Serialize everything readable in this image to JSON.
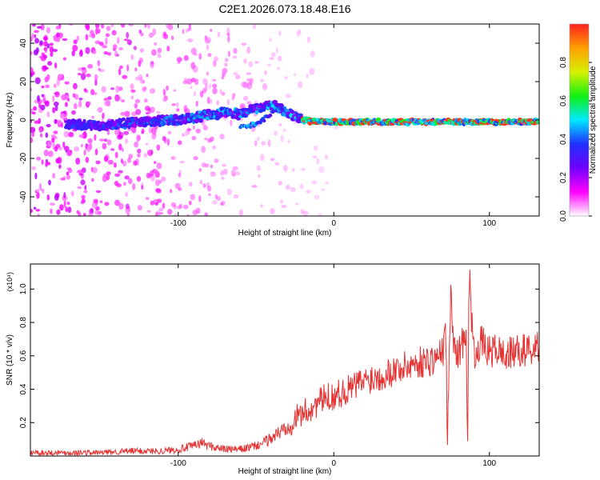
{
  "title": "C2E1.2026.073.18.48.E16",
  "colors": {
    "line": "#e63232",
    "axis": "#000000",
    "colorbar_stops": [
      "#ffffff",
      "#ff00ff",
      "#7000ff",
      "#2030ff",
      "#00e8ff",
      "#10f010",
      "#d8f000",
      "#ffa000",
      "#ff2020"
    ]
  },
  "chart_data": [
    {
      "type": "heatmap",
      "title": "",
      "xlabel": "Height of straight line (km)",
      "ylabel": "Frequency (Hz)",
      "xlim": [
        -195,
        132
      ],
      "ylim": [
        -50,
        50
      ],
      "x_ticks": [
        -100,
        0,
        100
      ],
      "y_ticks": [
        -40,
        -20,
        0,
        20,
        40
      ],
      "ridge": {
        "x": [
          -175,
          -150,
          -125,
          -100,
          -85,
          -70,
          -60,
          -50,
          -40,
          -35,
          -30,
          -20,
          -10,
          0,
          25,
          50,
          75,
          100,
          132
        ],
        "y": [
          -2,
          -3,
          -1,
          0,
          2,
          4,
          3,
          6,
          8,
          6,
          4,
          0,
          -1,
          -1,
          -1,
          -1,
          -1,
          -1,
          -1
        ]
      },
      "branch": {
        "x": [
          -60,
          -50,
          -42,
          -37,
          -30
        ],
        "y": [
          -4,
          -2,
          2,
          6,
          4
        ]
      },
      "colorbar": {
        "label": "Normalized spectral amplitude",
        "range": [
          0,
          1
        ],
        "ticks": [
          0.0,
          0.2,
          0.4,
          0.6,
          0.8
        ]
      }
    },
    {
      "type": "line",
      "title": "",
      "xlabel": "Height of straight line (km)",
      "ylabel": "SNR (10 * v/v)",
      "y_multiplier": "(x10⁴)",
      "xlim": [
        -195,
        132
      ],
      "ylim": [
        0,
        1.15
      ],
      "x_ticks": [
        -100,
        0,
        100
      ],
      "y_ticks": [
        0.2,
        0.4,
        0.6,
        0.8,
        1.0
      ],
      "series": [
        {
          "x": [
            -195,
            -170,
            -150,
            -130,
            -110,
            -100,
            -95,
            -90,
            -85,
            -80,
            -75,
            -70,
            -65,
            -60,
            -55,
            -50,
            -45,
            -40,
            -35,
            -30,
            -25,
            -20,
            -15,
            -10,
            -5,
            0,
            5,
            10,
            15,
            20,
            25,
            30,
            35,
            40,
            45,
            50,
            55,
            60,
            65,
            70,
            72,
            73,
            75,
            78,
            80,
            82,
            85,
            86,
            87,
            90,
            92,
            95,
            100,
            105,
            110,
            115,
            120,
            125,
            132
          ],
          "y": [
            0.02,
            0.02,
            0.02,
            0.03,
            0.03,
            0.04,
            0.05,
            0.06,
            0.08,
            0.06,
            0.05,
            0.04,
            0.04,
            0.04,
            0.05,
            0.06,
            0.08,
            0.11,
            0.14,
            0.18,
            0.22,
            0.26,
            0.28,
            0.32,
            0.35,
            0.36,
            0.38,
            0.4,
            0.43,
            0.45,
            0.47,
            0.48,
            0.5,
            0.52,
            0.53,
            0.55,
            0.56,
            0.57,
            0.58,
            0.62,
            0.75,
            0.05,
            0.95,
            0.6,
            0.62,
            0.65,
            0.78,
            0.06,
            1.1,
            0.6,
            0.65,
            0.68,
            0.62,
            0.64,
            0.6,
            0.62,
            0.63,
            0.64,
            0.65
          ]
        }
      ]
    }
  ]
}
